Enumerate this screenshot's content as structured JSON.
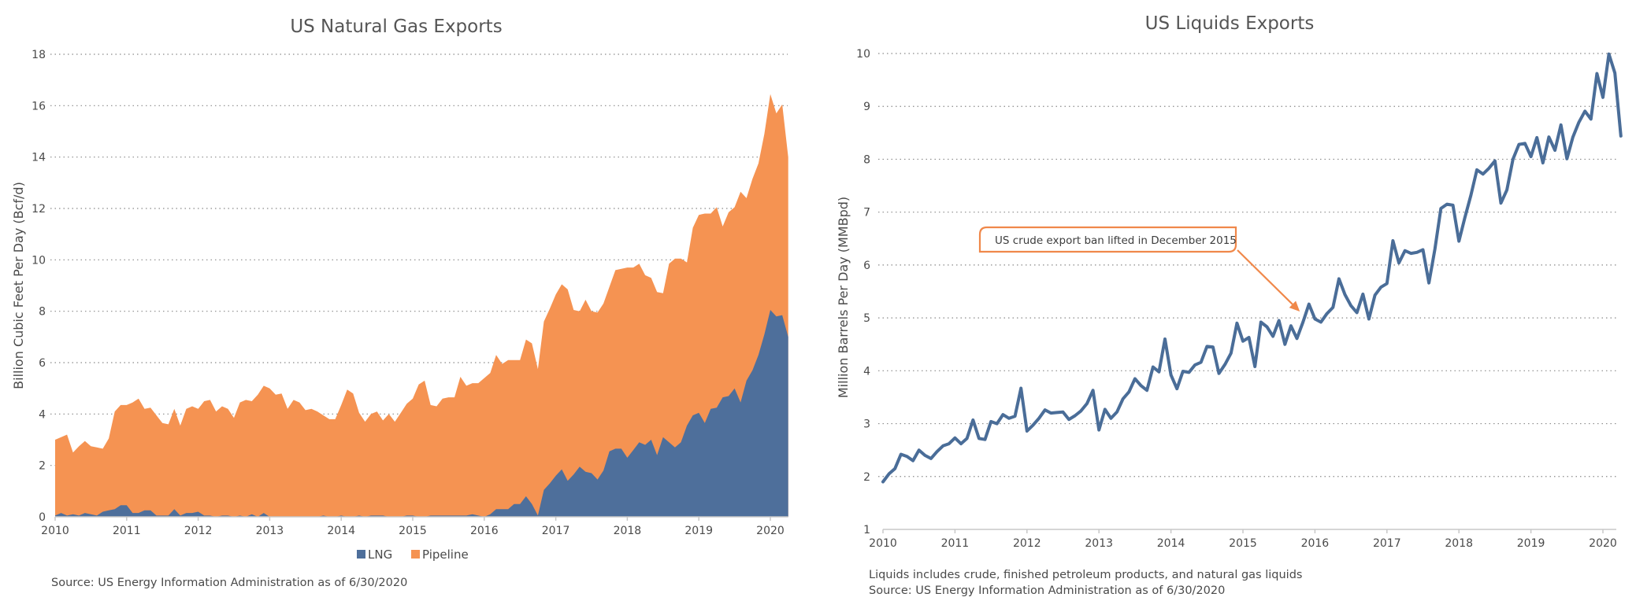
{
  "chart_data": [
    {
      "type": "area",
      "stacked": true,
      "title": "US Natural Gas Exports",
      "xlabel": "",
      "ylabel": "Billion Cubic Feet Per Day (Bcf/d)",
      "ylim": [
        0,
        18
      ],
      "yticks": [
        "0",
        "2",
        "4",
        "6",
        "8",
        "10",
        "12",
        "14",
        "16",
        "18"
      ],
      "xticks": [
        "2010",
        "2011",
        "2012",
        "2013",
        "2014",
        "2015",
        "2016",
        "2017",
        "2018",
        "2019",
        "2020"
      ],
      "x_start": "2010-01",
      "x_frequency": "monthly",
      "grid": true,
      "legend_position": "bottom-center",
      "series": [
        {
          "name": "LNG",
          "color": "#4e6f9b",
          "values": [
            0.05,
            0.15,
            0.05,
            0.1,
            0.05,
            0.15,
            0.1,
            0.05,
            0.2,
            0.25,
            0.3,
            0.45,
            0.45,
            0.15,
            0.15,
            0.25,
            0.25,
            0.05,
            0.05,
            0.05,
            0.3,
            0.05,
            0.15,
            0.15,
            0.2,
            0.05,
            0.05,
            0.0,
            0.05,
            0.05,
            0.0,
            0.05,
            0.0,
            0.1,
            0.0,
            0.15,
            0.0,
            0.0,
            0.0,
            0.0,
            0.0,
            0.0,
            0.0,
            0.0,
            0.0,
            0.05,
            0.0,
            0.0,
            0.05,
            0.0,
            0.0,
            0.05,
            0.0,
            0.05,
            0.05,
            0.05,
            0.0,
            0.0,
            0.0,
            0.05,
            0.05,
            0.0,
            0.0,
            0.05,
            0.05,
            0.05,
            0.05,
            0.05,
            0.05,
            0.05,
            0.1,
            0.05,
            0.0,
            0.1,
            0.3,
            0.3,
            0.3,
            0.5,
            0.5,
            0.8,
            0.5,
            0.05,
            1.05,
            1.3,
            1.6,
            1.85,
            1.4,
            1.65,
            1.95,
            1.75,
            1.7,
            1.45,
            1.8,
            2.55,
            2.65,
            2.65,
            2.3,
            2.6,
            2.9,
            2.8,
            3.0,
            2.4,
            3.1,
            2.9,
            2.7,
            2.9,
            3.55,
            3.95,
            4.05,
            3.65,
            4.2,
            4.25,
            4.65,
            4.7,
            5.0,
            4.45,
            5.3,
            5.7,
            6.3,
            7.1,
            8.05,
            7.8,
            7.85,
            7.0
          ]
        },
        {
          "name": "Pipeline",
          "color": "#f59352",
          "total_values": [
            3.0,
            3.1,
            3.2,
            2.5,
            2.75,
            2.95,
            2.75,
            2.7,
            2.65,
            3.05,
            4.1,
            4.35,
            4.35,
            4.45,
            4.6,
            4.2,
            4.25,
            3.95,
            3.65,
            3.6,
            4.2,
            3.55,
            4.2,
            4.3,
            4.2,
            4.5,
            4.55,
            4.1,
            4.3,
            4.2,
            3.85,
            4.45,
            4.55,
            4.5,
            4.75,
            5.1,
            5.0,
            4.75,
            4.8,
            4.2,
            4.55,
            4.45,
            4.15,
            4.2,
            4.1,
            3.95,
            3.8,
            3.8,
            4.35,
            4.95,
            4.8,
            4.05,
            3.7,
            4.0,
            4.1,
            3.75,
            4.0,
            3.7,
            4.05,
            4.4,
            4.6,
            5.15,
            5.3,
            4.35,
            4.3,
            4.6,
            4.65,
            4.65,
            5.45,
            5.1,
            5.2,
            5.2,
            5.4,
            5.6,
            6.3,
            5.95,
            6.1,
            6.1,
            6.1,
            6.9,
            6.75,
            5.75,
            7.6,
            8.1,
            8.65,
            9.05,
            8.85,
            8.05,
            8.0,
            8.45,
            8.0,
            7.95,
            8.3,
            8.95,
            9.6,
            9.65,
            9.7,
            9.7,
            9.85,
            9.4,
            9.3,
            8.75,
            8.7,
            9.85,
            10.05,
            10.05,
            9.9,
            11.25,
            11.75,
            11.8,
            11.8,
            12.05,
            11.3,
            11.85,
            12.05,
            12.65,
            12.4,
            13.15,
            13.75,
            14.9,
            16.45,
            15.7,
            16.05,
            14.0
          ]
        }
      ],
      "legend": [
        "LNG",
        "Pipeline"
      ],
      "source": "Source: US Energy Information Administration as of 6/30/2020"
    },
    {
      "type": "line",
      "title": "US Liquids Exports",
      "xlabel": "",
      "ylabel": "Million Barrels Per Day (MMBpd)",
      "ylim": [
        1,
        10
      ],
      "yticks": [
        "1",
        "2",
        "3",
        "4",
        "5",
        "6",
        "7",
        "8",
        "9",
        "10"
      ],
      "xticks": [
        "2010",
        "2011",
        "2012",
        "2013",
        "2014",
        "2015",
        "2016",
        "2017",
        "2018",
        "2019",
        "2020"
      ],
      "x_start": "2010-01",
      "x_frequency": "monthly",
      "grid": true,
      "series": [
        {
          "name": "Liquids Exports",
          "color": "#4a6d98",
          "values": [
            1.9,
            2.05,
            2.15,
            2.42,
            2.38,
            2.3,
            2.5,
            2.4,
            2.34,
            2.47,
            2.58,
            2.62,
            2.73,
            2.62,
            2.72,
            3.07,
            2.72,
            2.7,
            3.04,
            3.0,
            3.17,
            3.1,
            3.14,
            3.67,
            2.86,
            2.97,
            3.1,
            3.26,
            3.2,
            3.21,
            3.22,
            3.08,
            3.15,
            3.24,
            3.38,
            3.63,
            2.88,
            3.27,
            3.1,
            3.22,
            3.47,
            3.6,
            3.85,
            3.72,
            3.63,
            4.07,
            3.98,
            4.6,
            3.92,
            3.66,
            3.99,
            3.97,
            4.11,
            4.16,
            4.46,
            4.45,
            3.95,
            4.12,
            4.33,
            4.9,
            4.56,
            4.63,
            4.08,
            4.92,
            4.83,
            4.65,
            4.95,
            4.5,
            4.85,
            4.61,
            4.92,
            5.26,
            4.98,
            4.92,
            5.08,
            5.2,
            5.74,
            5.44,
            5.23,
            5.1,
            5.45,
            4.98,
            5.43,
            5.58,
            5.65,
            6.46,
            6.04,
            6.27,
            6.22,
            6.24,
            6.29,
            5.66,
            6.3,
            7.07,
            7.15,
            7.13,
            6.45,
            6.9,
            7.32,
            7.8,
            7.72,
            7.83,
            7.97,
            7.17,
            7.42,
            8.0,
            8.28,
            8.3,
            8.05,
            8.41,
            7.93,
            8.42,
            8.17,
            8.65,
            8.01,
            8.42,
            8.7,
            8.91,
            8.76,
            9.62,
            9.17,
            9.99,
            9.63,
            8.44
          ]
        }
      ],
      "annotation": {
        "text": "US crude export ban lifted in December 2015",
        "points_to": {
          "x": "2015-11",
          "y": 5.3
        },
        "color": "#f0884a"
      },
      "notes": [
        "Liquids includes crude, finished petroleum products, and natural gas liquids",
        "Source: US Energy Information Administration as of 6/30/2020"
      ]
    }
  ]
}
